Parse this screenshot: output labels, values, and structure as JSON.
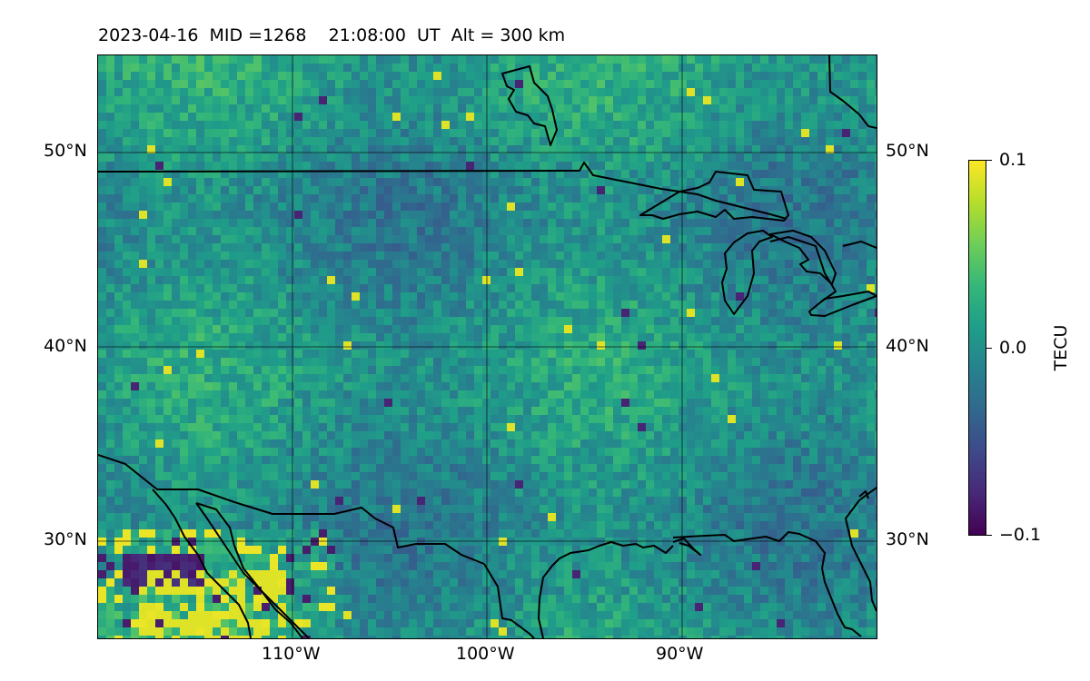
{
  "title": "2023-04-16  MID =1268    21:08:00  UT  Alt = 300 km",
  "map": {
    "lat_labels": [
      "50°N",
      "40°N",
      "30°N"
    ],
    "lon_labels": [
      "110°W",
      "100°W",
      "90°W"
    ],
    "lat_range": [
      25,
      55
    ],
    "lon_range": [
      -120,
      -80
    ],
    "gridlines": true
  },
  "colorbar": {
    "label": "TECU",
    "max_label": "0.1",
    "mid_label": "0.0",
    "min_label": "−0.1",
    "colormap": "viridis",
    "range": [
      -0.1,
      0.1
    ]
  },
  "colors": {
    "viridis_low": "#440154",
    "viridis_mid": "#21918c",
    "viridis_high": "#fde725",
    "coastline": "#000000"
  }
}
